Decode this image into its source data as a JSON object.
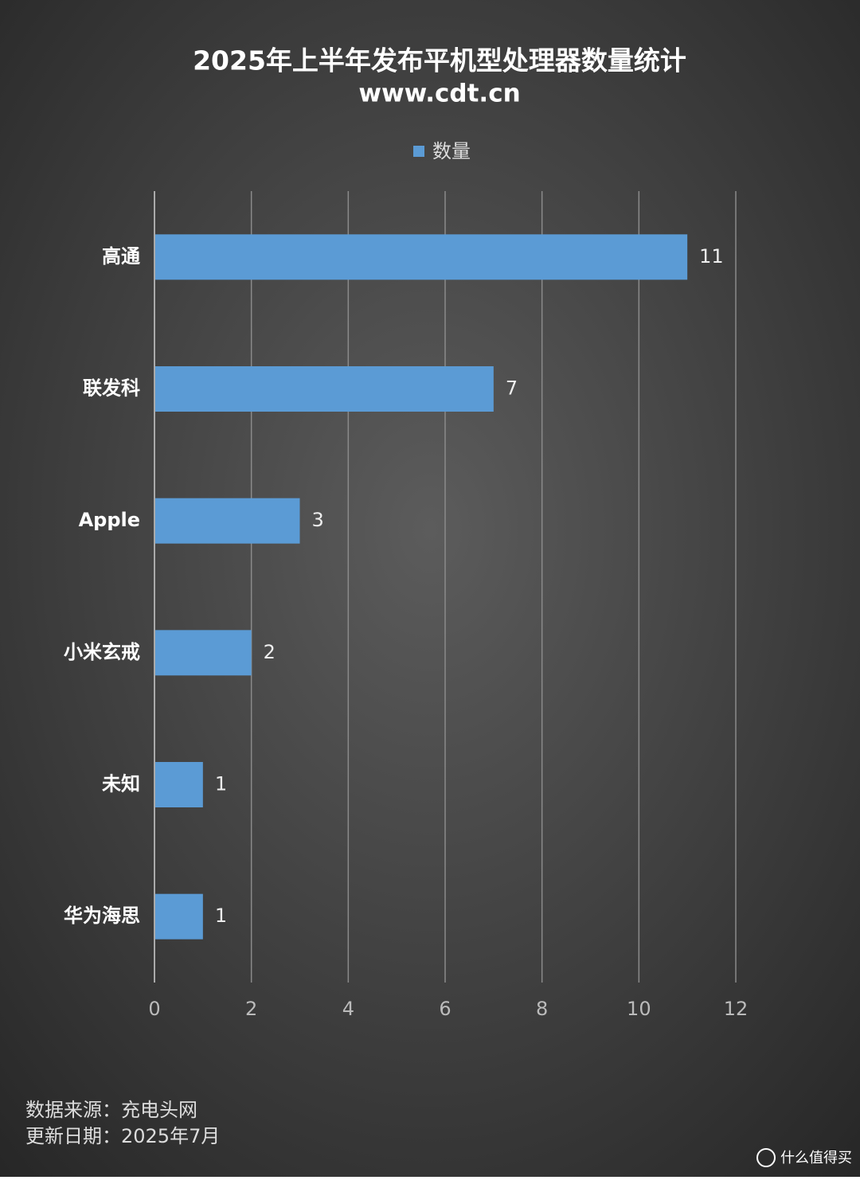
{
  "chart_data": {
    "type": "hbar",
    "title": "2025年上半年发布平机型处理器数量统计",
    "subtitle": "www.cdt.cn",
    "categories": [
      "高通",
      "联发科",
      "Apple",
      "小米玄戒",
      "未知",
      "华为海思"
    ],
    "series": [
      {
        "name": "数量",
        "color": "#5b9bd5",
        "values": [
          11,
          7,
          3,
          2,
          1,
          1
        ]
      }
    ],
    "xlim": [
      0,
      12
    ],
    "xticks": [
      0,
      2,
      4,
      6,
      8,
      10,
      12
    ],
    "grid": true,
    "legend": "top",
    "footnotes": [
      "数据来源：充电头网",
      "更新日期：2025年7月"
    ],
    "watermark": "什么值得买"
  }
}
